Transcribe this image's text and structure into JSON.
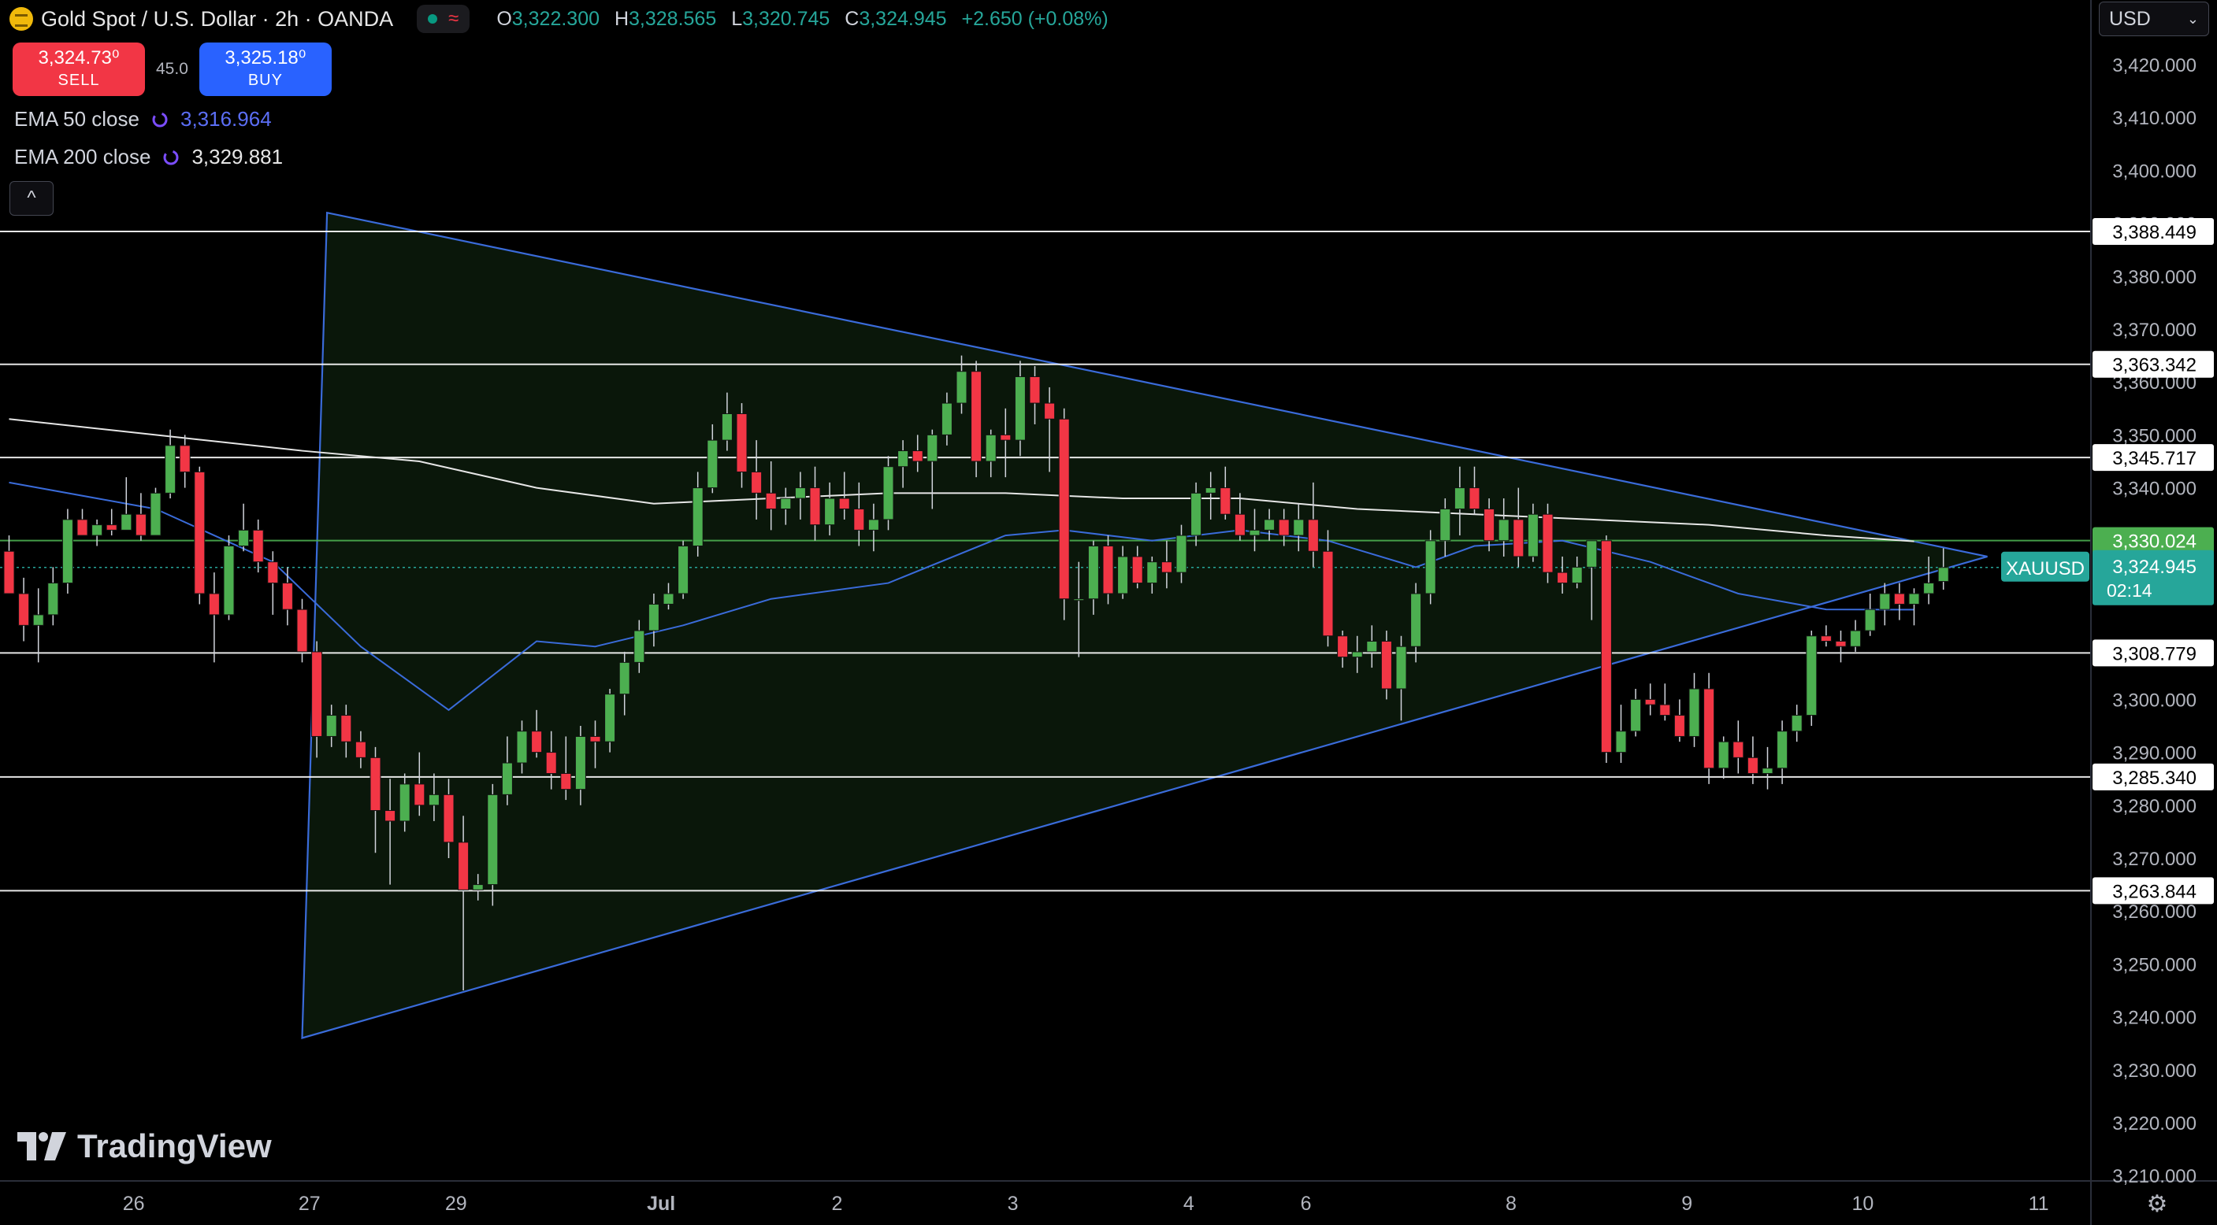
{
  "header": {
    "title": "Gold Spot / U.S. Dollar · 2h · OANDA",
    "ohlc": [
      {
        "k": "O",
        "v": "3,322.300"
      },
      {
        "k": "H",
        "v": "3,328.565"
      },
      {
        "k": "L",
        "v": "3,320.745"
      },
      {
        "k": "C",
        "v": "3,324.945"
      }
    ],
    "change": "+2.650 (+0.08%)",
    "colors": {
      "up": "#26a69a",
      "down": "#f23645"
    }
  },
  "trade": {
    "sell_price": "3,324.73⁰",
    "sell_label": "SELL",
    "spread": "45.0",
    "buy_price": "3,325.18⁰",
    "buy_label": "BUY"
  },
  "indicators": [
    {
      "label": "EMA 50 close",
      "value": "3,316.964",
      "color": "#5b6ef5"
    },
    {
      "label": "EMA 200 close",
      "value": "3,329.881",
      "color": "#e6e6e6"
    }
  ],
  "currency": "USD",
  "brand": "TradingView",
  "chart_data": {
    "type": "candlestick",
    "symbol": "XAUUSD",
    "ylim": [
      3207,
      3432
    ],
    "y_ticks": [
      3210,
      3220,
      3230,
      3240,
      3250,
      3260,
      3270,
      3280,
      3290,
      3300,
      3310,
      3320,
      3330,
      3340,
      3350,
      3360,
      3370,
      3380,
      3390,
      3400,
      3410,
      3420
    ],
    "x_labels": [
      {
        "t": "26",
        "i": 8.5
      },
      {
        "t": "27",
        "i": 20.5
      },
      {
        "t": "29",
        "i": 30.5
      },
      {
        "t": "Jul",
        "i": 44.5
      },
      {
        "t": "2",
        "i": 56.5
      },
      {
        "t": "3",
        "i": 68.5
      },
      {
        "t": "4",
        "i": 80.5
      },
      {
        "t": "6",
        "i": 88.5
      },
      {
        "t": "8",
        "i": 102.5
      },
      {
        "t": "9",
        "i": 114.5
      },
      {
        "t": "10",
        "i": 126.5
      },
      {
        "t": "11",
        "i": 138.5
      }
    ],
    "candles": [
      [
        3328,
        3331,
        3320,
        3320
      ],
      [
        3320,
        3323,
        3311,
        3314
      ],
      [
        3314,
        3321,
        3307,
        3316
      ],
      [
        3316,
        3325,
        3314,
        3322
      ],
      [
        3322,
        3336,
        3320,
        3334
      ],
      [
        3334,
        3336,
        3331,
        3331
      ],
      [
        3331,
        3334,
        3329,
        3333
      ],
      [
        3333,
        3336,
        3331,
        3332
      ],
      [
        3332,
        3342,
        3332,
        3335
      ],
      [
        3335,
        3339,
        3330,
        3331
      ],
      [
        3331,
        3340,
        3331,
        3339
      ],
      [
        3339,
        3351,
        3338,
        3348
      ],
      [
        3348,
        3350,
        3340,
        3343
      ],
      [
        3343,
        3344,
        3318,
        3320
      ],
      [
        3320,
        3324,
        3307,
        3316
      ],
      [
        3316,
        3331,
        3315,
        3329
      ],
      [
        3329,
        3337,
        3328,
        3332
      ],
      [
        3332,
        3334,
        3324,
        3326
      ],
      [
        3326,
        3328,
        3316,
        3322
      ],
      [
        3322,
        3325,
        3314,
        3317
      ],
      [
        3317,
        3319,
        3307,
        3309
      ],
      [
        3309,
        3311,
        3289,
        3293
      ],
      [
        3293,
        3299,
        3291,
        3297
      ],
      [
        3297,
        3299,
        3289,
        3292
      ],
      [
        3292,
        3294,
        3287,
        3289
      ],
      [
        3289,
        3291,
        3271,
        3279
      ],
      [
        3279,
        3285,
        3265,
        3277
      ],
      [
        3277,
        3286,
        3275,
        3284
      ],
      [
        3284,
        3290,
        3278,
        3280
      ],
      [
        3280,
        3286,
        3277,
        3282
      ],
      [
        3282,
        3285,
        3270,
        3273
      ],
      [
        3273,
        3278,
        3245,
        3264
      ],
      [
        3264,
        3267,
        3262,
        3265
      ],
      [
        3265,
        3284,
        3261,
        3282
      ],
      [
        3282,
        3293,
        3280,
        3288
      ],
      [
        3288,
        3296,
        3286,
        3294
      ],
      [
        3294,
        3298,
        3289,
        3290
      ],
      [
        3290,
        3294,
        3283,
        3286
      ],
      [
        3286,
        3293,
        3281,
        3283
      ],
      [
        3283,
        3295,
        3280,
        3293
      ],
      [
        3293,
        3296,
        3287,
        3292
      ],
      [
        3292,
        3302,
        3290,
        3301
      ],
      [
        3301,
        3309,
        3297,
        3307
      ],
      [
        3307,
        3315,
        3305,
        3313
      ],
      [
        3313,
        3320,
        3310,
        3318
      ],
      [
        3318,
        3322,
        3317,
        3320
      ],
      [
        3320,
        3330,
        3319,
        3329
      ],
      [
        3329,
        3343,
        3327,
        3340
      ],
      [
        3340,
        3352,
        3339,
        3349
      ],
      [
        3349,
        3358,
        3347,
        3354
      ],
      [
        3354,
        3356,
        3340,
        3343
      ],
      [
        3343,
        3349,
        3334,
        3339
      ],
      [
        3339,
        3345,
        3332,
        3336
      ],
      [
        3336,
        3340,
        3333,
        3338
      ],
      [
        3338,
        3343,
        3334,
        3340
      ],
      [
        3340,
        3344,
        3330,
        3333
      ],
      [
        3333,
        3341,
        3331,
        3338
      ],
      [
        3338,
        3343,
        3334,
        3336
      ],
      [
        3336,
        3341,
        3329,
        3332
      ],
      [
        3332,
        3337,
        3328,
        3334
      ],
      [
        3334,
        3346,
        3332,
        3344
      ],
      [
        3344,
        3349,
        3340,
        3347
      ],
      [
        3347,
        3350,
        3343,
        3345
      ],
      [
        3345,
        3351,
        3336,
        3350
      ],
      [
        3350,
        3358,
        3348,
        3356
      ],
      [
        3356,
        3365,
        3354,
        3362
      ],
      [
        3362,
        3364,
        3342,
        3345
      ],
      [
        3345,
        3351,
        3342,
        3350
      ],
      [
        3350,
        3355,
        3342,
        3349
      ],
      [
        3349,
        3364,
        3346,
        3361
      ],
      [
        3361,
        3363,
        3352,
        3356
      ],
      [
        3356,
        3359,
        3343,
        3353
      ],
      [
        3353,
        3355,
        3315,
        3319
      ],
      [
        3319,
        3326,
        3308,
        3319
      ],
      [
        3319,
        3330,
        3316,
        3329
      ],
      [
        3329,
        3331,
        3318,
        3320
      ],
      [
        3320,
        3329,
        3319,
        3327
      ],
      [
        3327,
        3329,
        3321,
        3322
      ],
      [
        3322,
        3327,
        3320,
        3326
      ],
      [
        3326,
        3330,
        3321,
        3324
      ],
      [
        3324,
        3333,
        3322,
        3331
      ],
      [
        3331,
        3341,
        3329,
        3339
      ],
      [
        3339,
        3343,
        3334,
        3340
      ],
      [
        3340,
        3344,
        3334,
        3335
      ],
      [
        3335,
        3339,
        3330,
        3331
      ],
      [
        3331,
        3336,
        3328,
        3332
      ],
      [
        3332,
        3336,
        3330,
        3334
      ],
      [
        3334,
        3336,
        3329,
        3331
      ],
      [
        3331,
        3337,
        3328,
        3334
      ],
      [
        3334,
        3341,
        3325,
        3328
      ],
      [
        3328,
        3332,
        3310,
        3312
      ],
      [
        3312,
        3313,
        3306,
        3308
      ],
      [
        3308,
        3312,
        3305,
        3309
      ],
      [
        3309,
        3314,
        3306,
        3311
      ],
      [
        3311,
        3313,
        3300,
        3302
      ],
      [
        3302,
        3312,
        3296,
        3310
      ],
      [
        3310,
        3322,
        3307,
        3320
      ],
      [
        3320,
        3332,
        3318,
        3330
      ],
      [
        3330,
        3338,
        3327,
        3336
      ],
      [
        3336,
        3344,
        3331,
        3340
      ],
      [
        3340,
        3344,
        3335,
        3336
      ],
      [
        3336,
        3338,
        3328,
        3330
      ],
      [
        3330,
        3338,
        3327,
        3334
      ],
      [
        3334,
        3340,
        3325,
        3327
      ],
      [
        3327,
        3337,
        3326,
        3335
      ],
      [
        3335,
        3337,
        3322,
        3324
      ],
      [
        3324,
        3327,
        3320,
        3322
      ],
      [
        3322,
        3327,
        3321,
        3325
      ],
      [
        3325,
        3330,
        3315,
        3330
      ],
      [
        3330,
        3331,
        3288,
        3290
      ],
      [
        3290,
        3299,
        3288,
        3294
      ],
      [
        3294,
        3302,
        3293,
        3300
      ],
      [
        3300,
        3303,
        3297,
        3299
      ],
      [
        3299,
        3303,
        3296,
        3297
      ],
      [
        3297,
        3300,
        3292,
        3293
      ],
      [
        3293,
        3305,
        3291,
        3302
      ],
      [
        3302,
        3305,
        3284,
        3287
      ],
      [
        3287,
        3293,
        3285,
        3292
      ],
      [
        3292,
        3296,
        3286,
        3289
      ],
      [
        3289,
        3293,
        3284,
        3286
      ],
      [
        3286,
        3291,
        3283,
        3287
      ],
      [
        3287,
        3296,
        3284,
        3294
      ],
      [
        3294,
        3299,
        3292,
        3297
      ],
      [
        3297,
        3313,
        3295,
        3312
      ],
      [
        3312,
        3314,
        3310,
        3311
      ],
      [
        3311,
        3313,
        3307,
        3310
      ],
      [
        3310,
        3315,
        3309,
        3313
      ],
      [
        3313,
        3320,
        3312,
        3317
      ],
      [
        3317,
        3322,
        3314,
        3320
      ],
      [
        3320,
        3322,
        3315,
        3318
      ],
      [
        3318,
        3321,
        3314,
        3320
      ],
      [
        3320,
        3327,
        3318,
        3322
      ],
      [
        3322.3,
        3328.565,
        3320.745,
        3324.945
      ]
    ],
    "ema50": [
      [
        0,
        3341
      ],
      [
        10,
        3336
      ],
      [
        18,
        3326
      ],
      [
        24,
        3310
      ],
      [
        30,
        3298
      ],
      [
        36,
        3311
      ],
      [
        40,
        3310
      ],
      [
        46,
        3314
      ],
      [
        52,
        3319
      ],
      [
        60,
        3322
      ],
      [
        68,
        3331
      ],
      [
        72,
        3332
      ],
      [
        78,
        3330
      ],
      [
        84,
        3332
      ],
      [
        90,
        3330
      ],
      [
        96,
        3325
      ],
      [
        100,
        3329
      ],
      [
        106,
        3330
      ],
      [
        112,
        3326
      ],
      [
        118,
        3320
      ],
      [
        124,
        3317
      ],
      [
        130,
        3316.964
      ]
    ],
    "ema200": [
      [
        0,
        3353
      ],
      [
        10,
        3350
      ],
      [
        20,
        3347
      ],
      [
        28,
        3345
      ],
      [
        36,
        3340
      ],
      [
        44,
        3337
      ],
      [
        52,
        3338
      ],
      [
        60,
        3339
      ],
      [
        68,
        3339
      ],
      [
        76,
        3338
      ],
      [
        84,
        3338
      ],
      [
        92,
        3336
      ],
      [
        100,
        3335
      ],
      [
        108,
        3334
      ],
      [
        116,
        3333
      ],
      [
        124,
        3331
      ],
      [
        130,
        3329.881
      ]
    ],
    "triangle": [
      [
        21.7,
        3392
      ],
      [
        20,
        3236
      ],
      [
        135,
        3327
      ],
      [
        21.7,
        3392
      ]
    ],
    "hlines": [
      3388.449,
      3363.342,
      3345.717,
      3330.024,
      3308.779,
      3285.34,
      3263.844
    ],
    "hline_colors": [
      "#ffffff",
      "#ffffff",
      "#ffffff",
      "#4caf50",
      "#ffffff",
      "#ffffff",
      "#ffffff"
    ],
    "price_line": 3324.945,
    "price_label": "3,324.945",
    "countdown": "02:14",
    "hline_labels": [
      "3,388.449",
      "3,363.342",
      "3,345.717",
      "3,330.024",
      "3,308.779",
      "3,285.340",
      "3,263.844"
    ]
  }
}
